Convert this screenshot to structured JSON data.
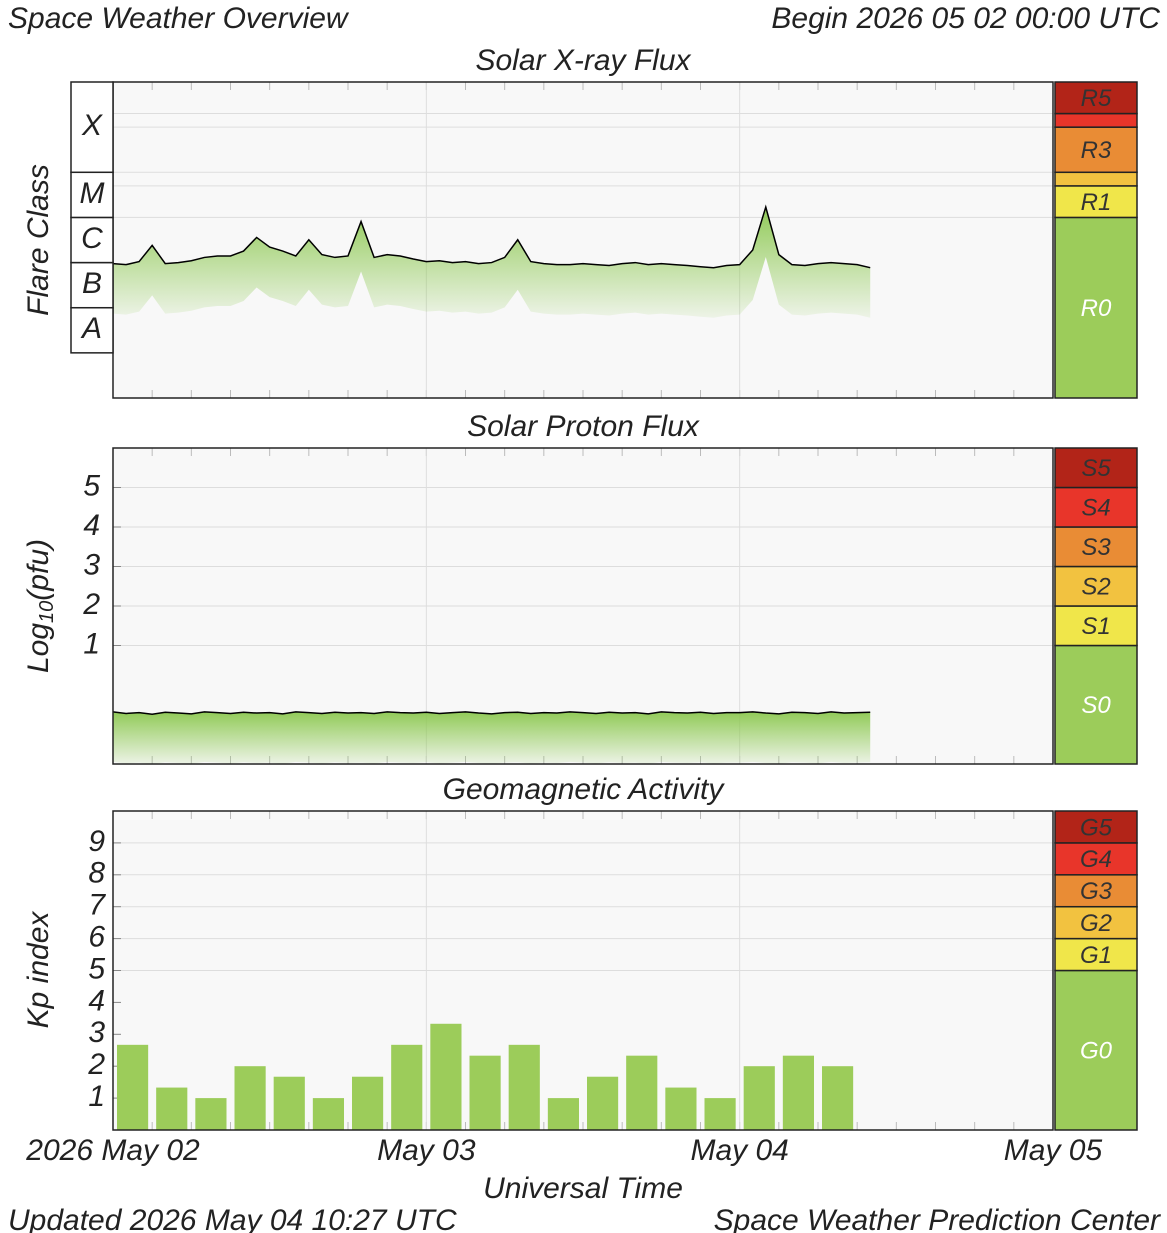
{
  "header": {
    "title": "Space Weather Overview",
    "begin": "Begin 2026 05 02 00:00 UTC"
  },
  "footer": {
    "updated": "Updated 2026 May 04 10:27 UTC",
    "source": "Space Weather Prediction Center"
  },
  "xlabel": "Universal Time",
  "chart_data": [
    {
      "type": "line",
      "title": "Solar X-ray Flux",
      "ylabel": "Flare Class",
      "log_scale": true,
      "ylim": [
        1e-09,
        0.01
      ],
      "xlim": [
        "2026-05-02T00:00",
        "2026-05-05T00:00"
      ],
      "xticks": [
        "2026-05-02T00:00",
        "2026-05-03T00:00",
        "2026-05-04T00:00",
        "2026-05-05T00:00"
      ],
      "color": "#000000",
      "fill_color": "#8cc850",
      "flare_classes": {
        "labels": [
          "A",
          "B",
          "C",
          "M",
          "X"
        ],
        "bounds": [
          1e-08,
          1e-07,
          1e-06,
          1e-05,
          0.0001
        ]
      },
      "scale": {
        "labels": [
          "R0",
          "R1",
          null,
          "R3",
          null,
          "R5"
        ],
        "thresholds": [
          1e-05,
          5e-05,
          0.0001,
          0.001,
          0.002
        ],
        "colors": [
          "#9ccc5a",
          "#f0e64a",
          "#f2c240",
          "#e98c35",
          "#e8352a",
          "#b22418"
        ]
      },
      "x": [
        "2026-05-02T00:00",
        "2026-05-02T01:00",
        "2026-05-02T02:00",
        "2026-05-02T03:00",
        "2026-05-02T04:00",
        "2026-05-02T05:00",
        "2026-05-02T06:00",
        "2026-05-02T07:00",
        "2026-05-02T08:00",
        "2026-05-02T09:00",
        "2026-05-02T10:00",
        "2026-05-02T11:00",
        "2026-05-02T12:00",
        "2026-05-02T13:00",
        "2026-05-02T14:00",
        "2026-05-02T15:00",
        "2026-05-02T16:00",
        "2026-05-02T17:00",
        "2026-05-02T18:00",
        "2026-05-02T19:00",
        "2026-05-02T20:00",
        "2026-05-02T21:00",
        "2026-05-02T22:00",
        "2026-05-02T23:00",
        "2026-05-03T00:00",
        "2026-05-03T01:00",
        "2026-05-03T02:00",
        "2026-05-03T03:00",
        "2026-05-03T04:00",
        "2026-05-03T05:00",
        "2026-05-03T06:00",
        "2026-05-03T07:00",
        "2026-05-03T08:00",
        "2026-05-03T09:00",
        "2026-05-03T10:00",
        "2026-05-03T11:00",
        "2026-05-03T12:00",
        "2026-05-03T13:00",
        "2026-05-03T14:00",
        "2026-05-03T15:00",
        "2026-05-03T16:00",
        "2026-05-03T17:00",
        "2026-05-03T18:00",
        "2026-05-03T19:00",
        "2026-05-03T20:00",
        "2026-05-03T21:00",
        "2026-05-03T22:00",
        "2026-05-03T23:00",
        "2026-05-04T00:00",
        "2026-05-04T01:00",
        "2026-05-04T02:00",
        "2026-05-04T03:00",
        "2026-05-04T04:00",
        "2026-05-04T05:00",
        "2026-05-04T06:00",
        "2026-05-04T07:00",
        "2026-05-04T08:00",
        "2026-05-04T09:00",
        "2026-05-04T10:00"
      ],
      "values": [
        9.5e-07,
        9e-07,
        1.05e-06,
        2.4e-06,
        9.5e-07,
        1e-06,
        1.1e-06,
        1.3e-06,
        1.4e-06,
        1.4e-06,
        1.8e-06,
        3.6e-06,
        2.2e-06,
        1.8e-06,
        1.4e-06,
        3.2e-06,
        1.5e-06,
        1.3e-06,
        1.4e-06,
        8.1e-06,
        1.3e-06,
        1.5e-06,
        1.4e-06,
        1.2e-06,
        1.05e-06,
        1.1e-06,
        1e-06,
        1.05e-06,
        9.5e-07,
        1e-06,
        1.3e-06,
        3.2e-06,
        1.05e-06,
        9.5e-07,
        9e-07,
        9e-07,
        9.5e-07,
        9e-07,
        8.6e-07,
        9.5e-07,
        1e-06,
        9e-07,
        9.5e-07,
        9e-07,
        8.6e-07,
        8.1e-07,
        7.7e-07,
        8.6e-07,
        9e-07,
        1.9e-06,
        1.7e-05,
        1.5e-06,
        9e-07,
        8.6e-07,
        9.5e-07,
        1e-06,
        9.5e-07,
        9e-07,
        7.7e-07
      ]
    },
    {
      "type": "line",
      "title": "Solar Proton Flux",
      "ylabel": {
        "text": "Log",
        "subscript": "10",
        "suffix": "(pfu)"
      },
      "ylim": [
        -2,
        6
      ],
      "yticks": [
        1,
        2,
        3,
        4,
        5
      ],
      "xlim": [
        "2026-05-02T00:00",
        "2026-05-05T00:00"
      ],
      "xticks": [
        "2026-05-02T00:00",
        "2026-05-03T00:00",
        "2026-05-04T00:00",
        "2026-05-05T00:00"
      ],
      "color": "#000000",
      "fill_color": "#8cc850",
      "scale": {
        "labels": [
          "S0",
          "S1",
          "S2",
          "S3",
          "S4",
          "S5"
        ],
        "thresholds": [
          1,
          2,
          3,
          4,
          5
        ],
        "colors": [
          "#9ccc5a",
          "#f0e64a",
          "#f2c240",
          "#e98c35",
          "#e8352a",
          "#b22418"
        ]
      },
      "x": [
        "2026-05-02T00:00",
        "2026-05-02T01:00",
        "2026-05-02T02:00",
        "2026-05-02T03:00",
        "2026-05-02T04:00",
        "2026-05-02T05:00",
        "2026-05-02T06:00",
        "2026-05-02T07:00",
        "2026-05-02T08:00",
        "2026-05-02T09:00",
        "2026-05-02T10:00",
        "2026-05-02T11:00",
        "2026-05-02T12:00",
        "2026-05-02T13:00",
        "2026-05-02T14:00",
        "2026-05-02T15:00",
        "2026-05-02T16:00",
        "2026-05-02T17:00",
        "2026-05-02T18:00",
        "2026-05-02T19:00",
        "2026-05-02T20:00",
        "2026-05-02T21:00",
        "2026-05-02T22:00",
        "2026-05-02T23:00",
        "2026-05-03T00:00",
        "2026-05-03T01:00",
        "2026-05-03T02:00",
        "2026-05-03T03:00",
        "2026-05-03T04:00",
        "2026-05-03T05:00",
        "2026-05-03T06:00",
        "2026-05-03T07:00",
        "2026-05-03T08:00",
        "2026-05-03T09:00",
        "2026-05-03T10:00",
        "2026-05-03T11:00",
        "2026-05-03T12:00",
        "2026-05-03T13:00",
        "2026-05-03T14:00",
        "2026-05-03T15:00",
        "2026-05-03T16:00",
        "2026-05-03T17:00",
        "2026-05-03T18:00",
        "2026-05-03T19:00",
        "2026-05-03T20:00",
        "2026-05-03T21:00",
        "2026-05-03T22:00",
        "2026-05-03T23:00",
        "2026-05-04T00:00",
        "2026-05-04T01:00",
        "2026-05-04T02:00",
        "2026-05-04T03:00",
        "2026-05-04T04:00",
        "2026-05-04T05:00",
        "2026-05-04T06:00",
        "2026-05-04T07:00",
        "2026-05-04T08:00",
        "2026-05-04T09:00",
        "2026-05-04T10:00"
      ],
      "values": [
        -0.68,
        -0.72,
        -0.7,
        -0.74,
        -0.69,
        -0.71,
        -0.73,
        -0.68,
        -0.7,
        -0.72,
        -0.69,
        -0.71,
        -0.7,
        -0.73,
        -0.68,
        -0.7,
        -0.72,
        -0.69,
        -0.71,
        -0.7,
        -0.72,
        -0.68,
        -0.7,
        -0.71,
        -0.69,
        -0.72,
        -0.7,
        -0.68,
        -0.71,
        -0.73,
        -0.7,
        -0.69,
        -0.72,
        -0.7,
        -0.71,
        -0.68,
        -0.7,
        -0.72,
        -0.69,
        -0.71,
        -0.7,
        -0.73,
        -0.68,
        -0.7,
        -0.71,
        -0.69,
        -0.72,
        -0.7,
        -0.7,
        -0.68,
        -0.71,
        -0.73,
        -0.69,
        -0.7,
        -0.72,
        -0.68,
        -0.71,
        -0.7,
        -0.69
      ]
    },
    {
      "type": "bar",
      "title": "Geomagnetic Activity",
      "ylabel": "Kp index",
      "ylim": [
        0,
        10
      ],
      "yticks": [
        1,
        2,
        3,
        4,
        5,
        6,
        7,
        8,
        9
      ],
      "xlim": [
        "2026-05-02T00:00",
        "2026-05-05T00:00"
      ],
      "xticks": [
        {
          "value": "2026-05-02T00:00",
          "label": "2026 May 02"
        },
        {
          "value": "2026-05-03T00:00",
          "label": "May 03"
        },
        {
          "value": "2026-05-04T00:00",
          "label": "May 04"
        },
        {
          "value": "2026-05-05T00:00",
          "label": "May 05"
        }
      ],
      "color": "#9ccc5a",
      "scale": {
        "labels": [
          "G0",
          "G1",
          "G2",
          "G3",
          "G4",
          "G5"
        ],
        "thresholds": [
          5,
          6,
          7,
          8,
          9
        ],
        "colors": [
          "#9ccc5a",
          "#f0e64a",
          "#f2c240",
          "#e98c35",
          "#e8352a",
          "#b22418"
        ]
      },
      "x": [
        "2026-05-02T00:00",
        "2026-05-02T03:00",
        "2026-05-02T06:00",
        "2026-05-02T09:00",
        "2026-05-02T12:00",
        "2026-05-02T15:00",
        "2026-05-02T18:00",
        "2026-05-02T21:00",
        "2026-05-03T00:00",
        "2026-05-03T03:00",
        "2026-05-03T06:00",
        "2026-05-03T09:00",
        "2026-05-03T12:00",
        "2026-05-03T15:00",
        "2026-05-03T18:00",
        "2026-05-03T21:00",
        "2026-05-04T00:00",
        "2026-05-04T03:00",
        "2026-05-04T06:00"
      ],
      "values": [
        2.67,
        1.33,
        1,
        2,
        1.67,
        1,
        1.67,
        2.67,
        3.33,
        2.33,
        2.67,
        1,
        1.67,
        2.33,
        1.33,
        1,
        2,
        2.33,
        2
      ]
    }
  ]
}
